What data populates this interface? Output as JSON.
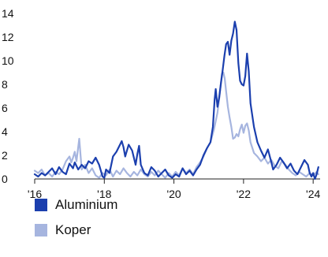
{
  "chart_data": {
    "type": "line",
    "title": "",
    "xlabel": "",
    "ylabel": "",
    "xlim": [
      2016,
      2024.2
    ],
    "ylim": [
      0,
      14
    ],
    "x_ticks": [
      "'16",
      "'18",
      "'20",
      "'22",
      "'24"
    ],
    "y_ticks": [
      "0",
      "2",
      "4",
      "6",
      "8",
      "10",
      "12",
      "14"
    ],
    "grid": false,
    "legend_position": "bottom-left",
    "series": [
      {
        "name": "Aluminium",
        "color": "#1b3fae",
        "points": [
          [
            2016.0,
            0.4
          ],
          [
            2016.1,
            0.2
          ],
          [
            2016.2,
            0.5
          ],
          [
            2016.3,
            0.3
          ],
          [
            2016.4,
            0.6
          ],
          [
            2016.5,
            0.9
          ],
          [
            2016.6,
            0.4
          ],
          [
            2016.7,
            1.0
          ],
          [
            2016.8,
            0.6
          ],
          [
            2016.9,
            0.4
          ],
          [
            2017.0,
            1.3
          ],
          [
            2017.1,
            0.9
          ],
          [
            2017.15,
            1.4
          ],
          [
            2017.25,
            0.8
          ],
          [
            2017.35,
            1.2
          ],
          [
            2017.45,
            0.9
          ],
          [
            2017.55,
            1.5
          ],
          [
            2017.65,
            1.3
          ],
          [
            2017.75,
            1.8
          ],
          [
            2017.85,
            1.2
          ],
          [
            2017.9,
            0.7
          ],
          [
            2017.95,
            0.2
          ],
          [
            2018.0,
            0.1
          ],
          [
            2018.05,
            0.8
          ],
          [
            2018.15,
            0.5
          ],
          [
            2018.25,
            1.9
          ],
          [
            2018.35,
            2.3
          ],
          [
            2018.45,
            2.9
          ],
          [
            2018.5,
            3.2
          ],
          [
            2018.55,
            2.7
          ],
          [
            2018.6,
            1.9
          ],
          [
            2018.7,
            2.9
          ],
          [
            2018.8,
            2.4
          ],
          [
            2018.9,
            1.2
          ],
          [
            2018.95,
            2.1
          ],
          [
            2019.0,
            2.8
          ],
          [
            2019.05,
            1.2
          ],
          [
            2019.15,
            0.5
          ],
          [
            2019.25,
            0.3
          ],
          [
            2019.35,
            1.0
          ],
          [
            2019.45,
            0.7
          ],
          [
            2019.55,
            0.2
          ],
          [
            2019.65,
            0.5
          ],
          [
            2019.75,
            0.8
          ],
          [
            2019.85,
            0.3
          ],
          [
            2019.95,
            0.1
          ],
          [
            2020.05,
            0.4
          ],
          [
            2020.15,
            0.2
          ],
          [
            2020.25,
            0.9
          ],
          [
            2020.35,
            0.4
          ],
          [
            2020.45,
            0.7
          ],
          [
            2020.55,
            0.3
          ],
          [
            2020.65,
            0.8
          ],
          [
            2020.75,
            1.2
          ],
          [
            2020.85,
            2.0
          ],
          [
            2020.95,
            2.6
          ],
          [
            2021.05,
            3.1
          ],
          [
            2021.12,
            4.4
          ],
          [
            2021.17,
            6.7
          ],
          [
            2021.2,
            7.6
          ],
          [
            2021.25,
            6.1
          ],
          [
            2021.3,
            6.9
          ],
          [
            2021.35,
            8.1
          ],
          [
            2021.4,
            9.2
          ],
          [
            2021.45,
            10.4
          ],
          [
            2021.5,
            11.4
          ],
          [
            2021.55,
            11.6
          ],
          [
            2021.6,
            10.5
          ],
          [
            2021.65,
            11.7
          ],
          [
            2021.7,
            12.3
          ],
          [
            2021.75,
            13.3
          ],
          [
            2021.8,
            12.6
          ],
          [
            2021.85,
            9.8
          ],
          [
            2021.9,
            8.3
          ],
          [
            2021.95,
            8.0
          ],
          [
            2022.0,
            7.9
          ],
          [
            2022.05,
            8.7
          ],
          [
            2022.1,
            10.6
          ],
          [
            2022.15,
            9.1
          ],
          [
            2022.2,
            6.4
          ],
          [
            2022.3,
            4.4
          ],
          [
            2022.4,
            3.1
          ],
          [
            2022.5,
            2.4
          ],
          [
            2022.6,
            1.8
          ],
          [
            2022.7,
            2.5
          ],
          [
            2022.8,
            1.4
          ],
          [
            2022.85,
            0.8
          ],
          [
            2022.95,
            1.2
          ],
          [
            2023.05,
            1.8
          ],
          [
            2023.15,
            1.4
          ],
          [
            2023.25,
            0.9
          ],
          [
            2023.35,
            1.3
          ],
          [
            2023.45,
            0.7
          ],
          [
            2023.55,
            0.4
          ],
          [
            2023.65,
            1.0
          ],
          [
            2023.75,
            1.6
          ],
          [
            2023.85,
            1.2
          ],
          [
            2023.9,
            0.5
          ],
          [
            2023.95,
            0.2
          ],
          [
            2024.0,
            0.5
          ],
          [
            2024.05,
            0.0
          ],
          [
            2024.1,
            0.4
          ],
          [
            2024.15,
            1.0
          ]
        ]
      },
      {
        "name": "Koper",
        "color": "#a6b5df",
        "points": [
          [
            2016.0,
            0.7
          ],
          [
            2016.1,
            0.5
          ],
          [
            2016.2,
            0.8
          ],
          [
            2016.3,
            0.3
          ],
          [
            2016.4,
            0.5
          ],
          [
            2016.5,
            0.2
          ],
          [
            2016.6,
            0.6
          ],
          [
            2016.7,
            0.4
          ],
          [
            2016.8,
            0.8
          ],
          [
            2016.9,
            1.5
          ],
          [
            2017.0,
            1.9
          ],
          [
            2017.05,
            1.4
          ],
          [
            2017.1,
            1.8
          ],
          [
            2017.15,
            2.3
          ],
          [
            2017.2,
            1.5
          ],
          [
            2017.28,
            3.4
          ],
          [
            2017.35,
            0.8
          ],
          [
            2017.45,
            1.2
          ],
          [
            2017.55,
            0.5
          ],
          [
            2017.65,
            0.9
          ],
          [
            2017.75,
            0.3
          ],
          [
            2017.85,
            0.1
          ],
          [
            2017.95,
            0.5
          ],
          [
            2018.05,
            0.3
          ],
          [
            2018.15,
            0.8
          ],
          [
            2018.25,
            0.2
          ],
          [
            2018.35,
            0.7
          ],
          [
            2018.45,
            0.4
          ],
          [
            2018.55,
            0.9
          ],
          [
            2018.65,
            0.5
          ],
          [
            2018.75,
            0.2
          ],
          [
            2018.85,
            0.6
          ],
          [
            2018.95,
            0.3
          ],
          [
            2019.05,
            0.8
          ],
          [
            2019.15,
            0.4
          ],
          [
            2019.25,
            0.2
          ],
          [
            2019.35,
            0.6
          ],
          [
            2019.45,
            0.3
          ],
          [
            2019.55,
            0.7
          ],
          [
            2019.65,
            0.4
          ],
          [
            2019.75,
            0.1
          ],
          [
            2019.85,
            0.5
          ],
          [
            2019.95,
            0.2
          ],
          [
            2020.05,
            0.6
          ],
          [
            2020.15,
            0.3
          ],
          [
            2020.25,
            0.9
          ],
          [
            2020.35,
            0.5
          ],
          [
            2020.45,
            0.8
          ],
          [
            2020.55,
            0.4
          ],
          [
            2020.65,
            1.0
          ],
          [
            2020.75,
            1.4
          ],
          [
            2020.85,
            1.9
          ],
          [
            2020.95,
            2.6
          ],
          [
            2021.05,
            3.1
          ],
          [
            2021.15,
            4.2
          ],
          [
            2021.25,
            5.6
          ],
          [
            2021.32,
            7.3
          ],
          [
            2021.38,
            8.9
          ],
          [
            2021.42,
            9.0
          ],
          [
            2021.46,
            8.5
          ],
          [
            2021.5,
            7.4
          ],
          [
            2021.55,
            6.1
          ],
          [
            2021.6,
            5.2
          ],
          [
            2021.65,
            4.4
          ],
          [
            2021.7,
            3.4
          ],
          [
            2021.75,
            3.5
          ],
          [
            2021.8,
            3.8
          ],
          [
            2021.85,
            3.6
          ],
          [
            2021.9,
            4.2
          ],
          [
            2021.95,
            4.6
          ],
          [
            2022.0,
            3.9
          ],
          [
            2022.05,
            4.5
          ],
          [
            2022.1,
            4.7
          ],
          [
            2022.15,
            4.1
          ],
          [
            2022.2,
            3.1
          ],
          [
            2022.3,
            2.2
          ],
          [
            2022.4,
            1.9
          ],
          [
            2022.5,
            1.5
          ],
          [
            2022.6,
            1.8
          ],
          [
            2022.7,
            1.3
          ],
          [
            2022.8,
            1.6
          ],
          [
            2022.9,
            1.1
          ],
          [
            2023.0,
            0.9
          ],
          [
            2023.1,
            1.5
          ],
          [
            2023.2,
            1.2
          ],
          [
            2023.3,
            0.8
          ],
          [
            2023.4,
            0.5
          ],
          [
            2023.5,
            0.3
          ],
          [
            2023.6,
            0.6
          ],
          [
            2023.7,
            0.4
          ],
          [
            2023.8,
            0.2
          ],
          [
            2023.9,
            0.5
          ],
          [
            2024.0,
            0.3
          ],
          [
            2024.1,
            0.6
          ],
          [
            2024.15,
            0.4
          ]
        ]
      }
    ]
  }
}
